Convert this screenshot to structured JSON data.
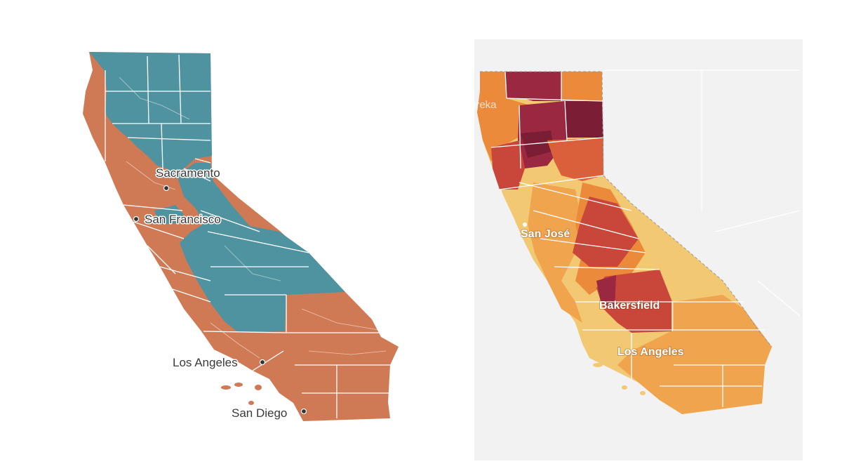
{
  "colors": {
    "left_blue": "#4f93a0",
    "left_orange": "#cf7a55",
    "right_darkest": "#7a1d35",
    "right_dark": "#9b2841",
    "right_red": "#c9473a",
    "right_redorange": "#d9603a",
    "right_orange": "#ec8a3c",
    "right_amber": "#f0a44d",
    "right_light": "#f3c873",
    "right_background": "#f2f2f2"
  },
  "left_map": {
    "cities": [
      {
        "name": "Sacramento"
      },
      {
        "name": "San Francisco"
      },
      {
        "name": "Los Angeles"
      },
      {
        "name": "San Diego"
      }
    ]
  },
  "right_map": {
    "cities": [
      {
        "name": "Eureka"
      },
      {
        "name": "San José"
      },
      {
        "name": "Bakersfield"
      },
      {
        "name": "Los Angeles"
      }
    ]
  }
}
